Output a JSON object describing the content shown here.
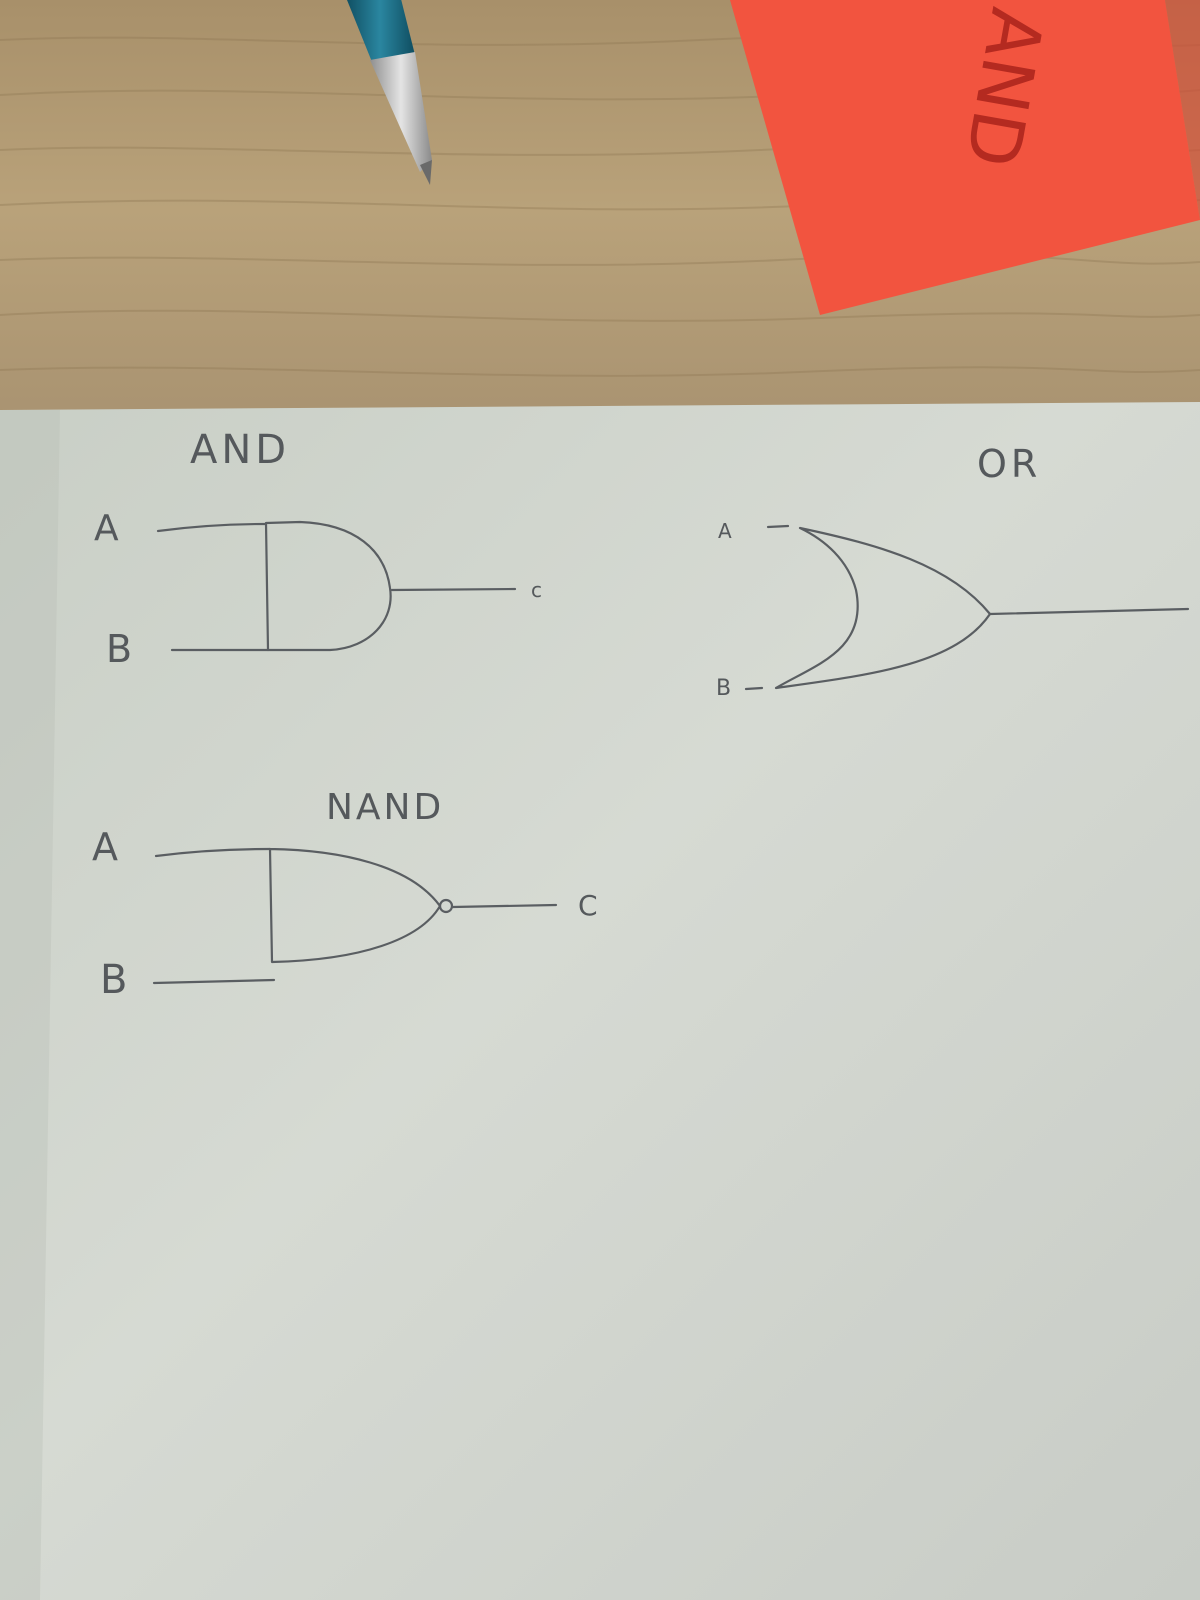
{
  "sticky_note": {
    "text": "AND"
  },
  "and_gate": {
    "title": "AND",
    "input_a": "A",
    "input_b": "B",
    "output": "c"
  },
  "or_gate": {
    "title": "OR",
    "input_a": "A",
    "input_b": "B"
  },
  "nand_gate": {
    "title": "NAND",
    "input_a": "A",
    "input_b": "B",
    "output": "C"
  },
  "colors": {
    "desk": "#b39a6e",
    "paper": "#d4d8d2",
    "ink": "#5a5e62",
    "sticky": "#f2543f",
    "pen_body": "#1f6f86",
    "pen_tip": "#c9c9c9"
  }
}
